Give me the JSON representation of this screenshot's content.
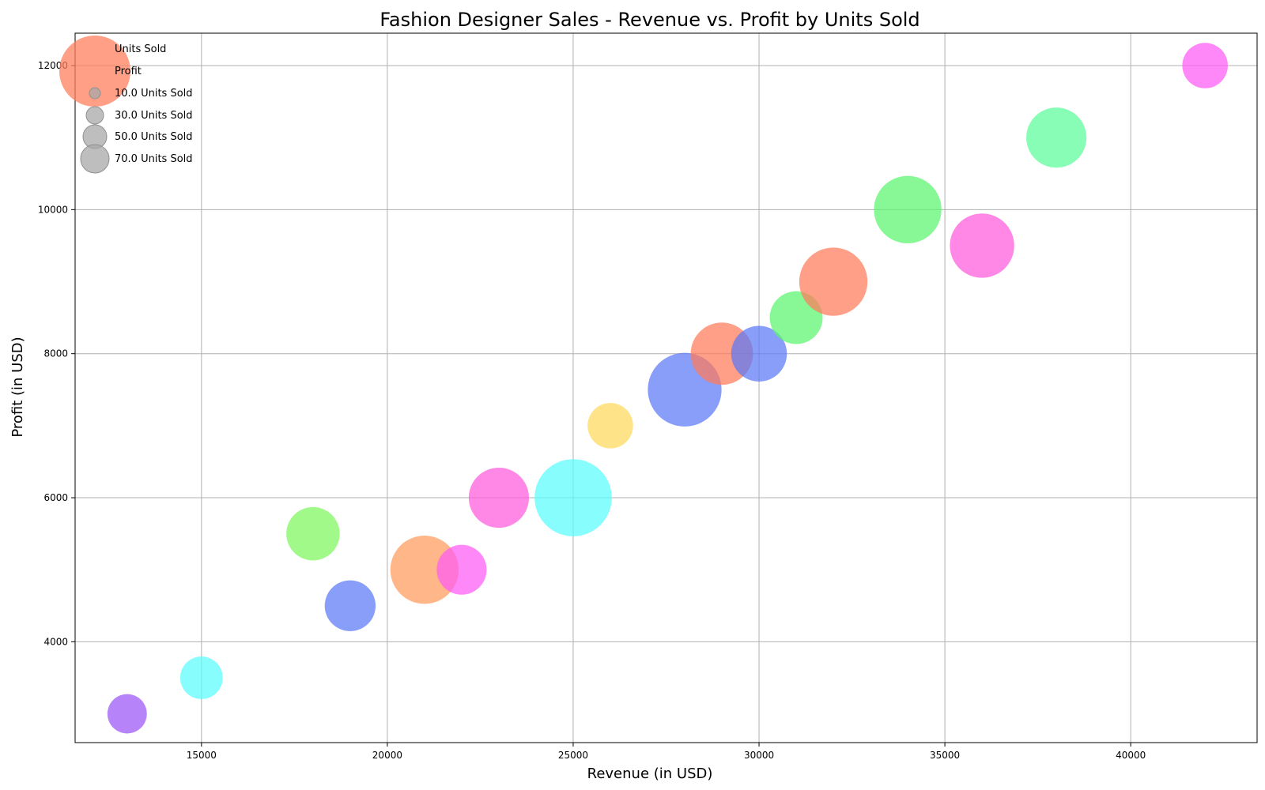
{
  "chart_data": {
    "type": "scatter",
    "title": "Fashion Designer Sales - Revenue vs. Profit by Units Sold",
    "xlabel": "Revenue (in USD)",
    "ylabel": "Profit (in USD)",
    "xlim": [
      11600,
      43400
    ],
    "ylim": [
      2600,
      12450
    ],
    "xticks": [
      15000,
      20000,
      25000,
      30000,
      35000,
      40000
    ],
    "yticks": [
      4000,
      6000,
      8000,
      10000,
      12000
    ],
    "grid": true,
    "legend": {
      "placement": "top-left",
      "entries": [
        "Units Sold",
        "Profit",
        "10.0 Units Sold",
        "30.0 Units Sold",
        "50.0 Units Sold",
        "70.0 Units Sold"
      ],
      "size_values": [
        10,
        30,
        50,
        70
      ],
      "marker_color": "#ff7f5e"
    },
    "points": [
      {
        "revenue": 13000,
        "profit": 3000,
        "units_sold": 30,
        "color": "#9a55f5"
      },
      {
        "revenue": 15000,
        "profit": 3500,
        "units_sold": 35,
        "color": "#5afcfc"
      },
      {
        "revenue": 18000,
        "profit": 5500,
        "units_sold": 55,
        "color": "#7cf65a"
      },
      {
        "revenue": 19000,
        "profit": 4500,
        "units_sold": 50,
        "color": "#5a78f5"
      },
      {
        "revenue": 21000,
        "profit": 5000,
        "units_sold": 90,
        "color": "#ff9a5a"
      },
      {
        "revenue": 22000,
        "profit": 5000,
        "units_sold": 48,
        "color": "#ff5af5"
      },
      {
        "revenue": 23000,
        "profit": 6000,
        "units_sold": 70,
        "color": "#ff5ade"
      },
      {
        "revenue": 25000,
        "profit": 6000,
        "units_sold": 115,
        "color": "#5afcfc"
      },
      {
        "revenue": 26000,
        "profit": 7000,
        "units_sold": 40,
        "color": "#ffd85a"
      },
      {
        "revenue": 28000,
        "profit": 7500,
        "units_sold": 105,
        "color": "#5a78f5"
      },
      {
        "revenue": 29000,
        "profit": 8000,
        "units_sold": 75,
        "color": "#ff7a5a"
      },
      {
        "revenue": 30000,
        "profit": 8000,
        "units_sold": 60,
        "color": "#5a78f5"
      },
      {
        "revenue": 31000,
        "profit": 8500,
        "units_sold": 54,
        "color": "#5af56e"
      },
      {
        "revenue": 32000,
        "profit": 9000,
        "units_sold": 90,
        "color": "#ff7a5a"
      },
      {
        "revenue": 34000,
        "profit": 10000,
        "units_sold": 88,
        "color": "#5af56e"
      },
      {
        "revenue": 36000,
        "profit": 9500,
        "units_sold": 80,
        "color": "#ff5ade"
      },
      {
        "revenue": 38000,
        "profit": 11000,
        "units_sold": 70,
        "color": "#5afc9a"
      },
      {
        "revenue": 42000,
        "profit": 12000,
        "units_sold": 40,
        "color": "#ff5af5"
      }
    ]
  }
}
